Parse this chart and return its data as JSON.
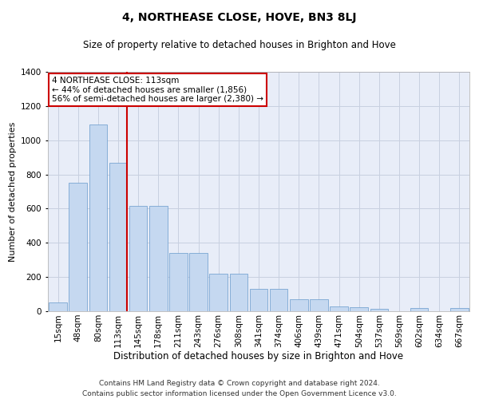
{
  "title": "4, NORTHEASE CLOSE, HOVE, BN3 8LJ",
  "subtitle": "Size of property relative to detached houses in Brighton and Hove",
  "xlabel": "Distribution of detached houses by size in Brighton and Hove",
  "ylabel": "Number of detached properties",
  "footer_line1": "Contains HM Land Registry data © Crown copyright and database right 2024.",
  "footer_line2": "Contains public sector information licensed under the Open Government Licence v3.0.",
  "annotation_line1": "4 NORTHEASE CLOSE: 113sqm",
  "annotation_line2": "← 44% of detached houses are smaller (1,856)",
  "annotation_line3": "56% of semi-detached houses are larger (2,380) →",
  "categories": [
    "15sqm",
    "48sqm",
    "80sqm",
    "113sqm",
    "145sqm",
    "178sqm",
    "211sqm",
    "243sqm",
    "276sqm",
    "308sqm",
    "341sqm",
    "374sqm",
    "406sqm",
    "439sqm",
    "471sqm",
    "504sqm",
    "537sqm",
    "569sqm",
    "602sqm",
    "634sqm",
    "667sqm"
  ],
  "values": [
    50,
    750,
    1090,
    870,
    615,
    615,
    340,
    340,
    220,
    220,
    130,
    130,
    68,
    68,
    30,
    25,
    15,
    0,
    18,
    0,
    18
  ],
  "bar_color": "#c5d8f0",
  "bar_edge_color": "#6699cc",
  "red_line_index": 3,
  "red_line_color": "#cc0000",
  "ylim": [
    0,
    1400
  ],
  "yticks": [
    0,
    200,
    400,
    600,
    800,
    1000,
    1200,
    1400
  ],
  "grid_color": "#c8d0e0",
  "background_color": "#e8edf8",
  "annotation_box_edge_color": "#cc0000",
  "annotation_box_face_color": "#ffffff",
  "title_fontsize": 10,
  "subtitle_fontsize": 8.5,
  "xlabel_fontsize": 8.5,
  "ylabel_fontsize": 8,
  "tick_fontsize": 7.5,
  "annotation_fontsize": 7.5,
  "footer_fontsize": 6.5
}
